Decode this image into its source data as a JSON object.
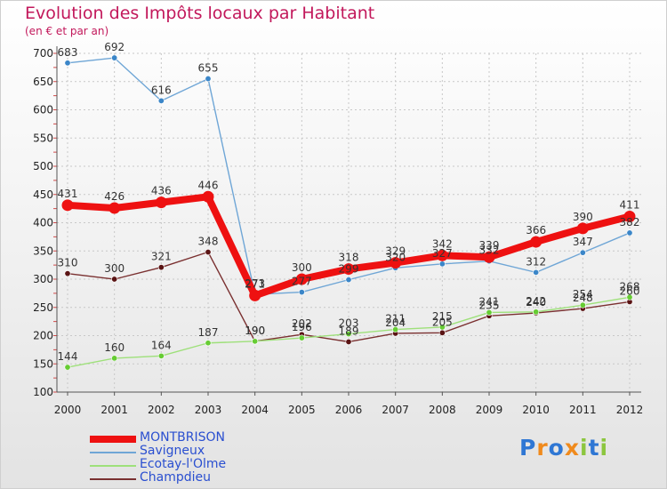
{
  "title": "Evolution des Impôts locaux par Habitant",
  "subtitle": "(en € et par an)",
  "logo": {
    "text": "Proxiti",
    "letters": [
      {
        "ch": "P",
        "color": "#2f77d4"
      },
      {
        "ch": "r",
        "color": "#f08a1c"
      },
      {
        "ch": "o",
        "color": "#2f77d4"
      },
      {
        "ch": "x",
        "color": "#f08a1c"
      },
      {
        "ch": "i",
        "color": "#8cc63f"
      },
      {
        "ch": "t",
        "color": "#2f77d4"
      },
      {
        "ch": "i",
        "color": "#8cc63f"
      }
    ]
  },
  "chart_data": {
    "type": "line",
    "title": "Evolution des Impôts locaux par Habitant",
    "subtitle": "(en € et par an)",
    "xlabel": "",
    "ylabel": "",
    "ylim": [
      100,
      700
    ],
    "yticks": [
      100,
      150,
      200,
      250,
      300,
      350,
      400,
      450,
      500,
      550,
      600,
      650,
      700
    ],
    "categories": [
      "2000",
      "2001",
      "2002",
      "2003",
      "2004",
      "2005",
      "2006",
      "2007",
      "2008",
      "2009",
      "2010",
      "2011",
      "2012"
    ],
    "grid": true,
    "legend_position": "bottom-left",
    "series": [
      {
        "name": "MONTBRISON",
        "color": "#ee1111",
        "marker_color": "#ee1111",
        "thick": true,
        "values": [
          431,
          426,
          436,
          446,
          271,
          300,
          318,
          329,
          342,
          339,
          366,
          390,
          411
        ]
      },
      {
        "name": "Savigneux",
        "color": "#6fa6d6",
        "marker_color": "#3b86c8",
        "thick": false,
        "values": [
          683,
          692,
          616,
          655,
          273,
          277,
          299,
          320,
          327,
          332,
          312,
          347,
          382
        ]
      },
      {
        "name": "Ecotay-l'Olme",
        "color": "#9ee07a",
        "marker_color": "#66cc33",
        "thick": false,
        "values": [
          144,
          160,
          164,
          187,
          190,
          196,
          203,
          211,
          215,
          241,
          242,
          254,
          268
        ]
      },
      {
        "name": "Champdieu",
        "color": "#7a3030",
        "marker_color": "#5a1414",
        "thick": false,
        "values": [
          310,
          300,
          321,
          348,
          190,
          202,
          189,
          204,
          205,
          235,
          240,
          248,
          260
        ]
      }
    ]
  }
}
